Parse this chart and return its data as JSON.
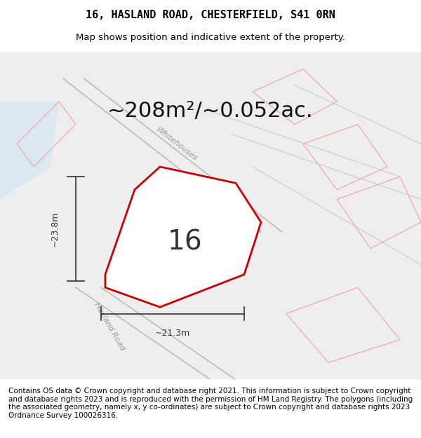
{
  "title": "16, HASLAND ROAD, CHESTERFIELD, S41 0RN",
  "subtitle": "Map shows position and indicative extent of the property.",
  "area_text": "~208m²/~0.052ac.",
  "number_label": "16",
  "dim_vertical": "~23.8m",
  "dim_horizontal": "~21.3m",
  "footer": "Contains OS data © Crown copyright and database right 2021. This information is subject to Crown copyright and database rights 2023 and is reproduced with the permission of HM Land Registry. The polygons (including the associated geometry, namely x, y co-ordinates) are subject to Crown copyright and database rights 2023 Ordnance Survey 100026316.",
  "bg_color": "#f5f5f5",
  "map_bg": "#f0eeee",
  "plot_color": "#cc0000",
  "road_label1": "Whitehouses",
  "road_label2": "Hasland Road",
  "title_fontsize": 11,
  "subtitle_fontsize": 9.5,
  "area_fontsize": 22,
  "number_fontsize": 28,
  "footer_fontsize": 7.5
}
